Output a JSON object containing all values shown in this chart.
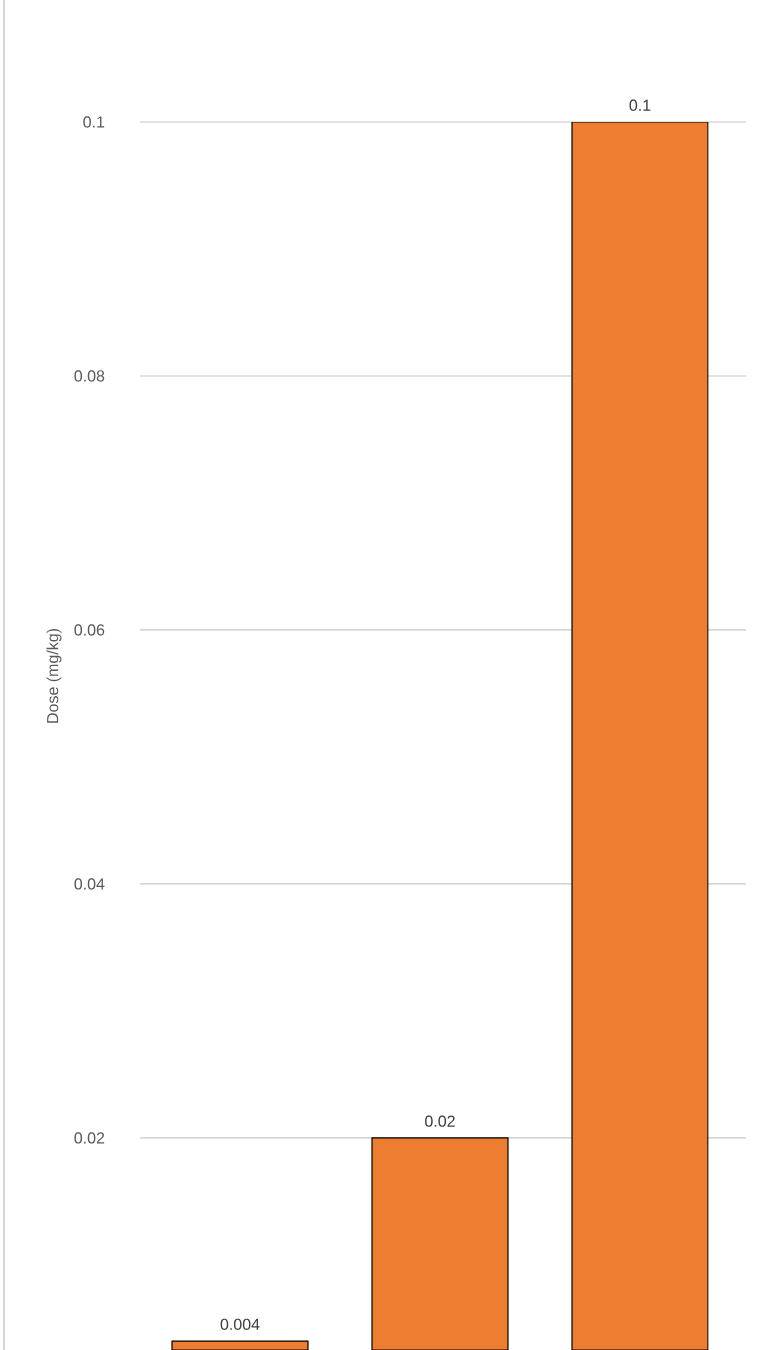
{
  "chart_data": {
    "type": "bar",
    "ylabel": "Dose (mg/kg)",
    "categories": [
      null,
      null,
      null
    ],
    "values": [
      0.004,
      0.02,
      0.1
    ],
    "color": "#ed7d31",
    "ylim": [
      0.0033,
      0.1
    ],
    "yticks": [
      0.02,
      0.04,
      0.06,
      0.08,
      0.1
    ],
    "grid": "y",
    "data_labels": true
  }
}
